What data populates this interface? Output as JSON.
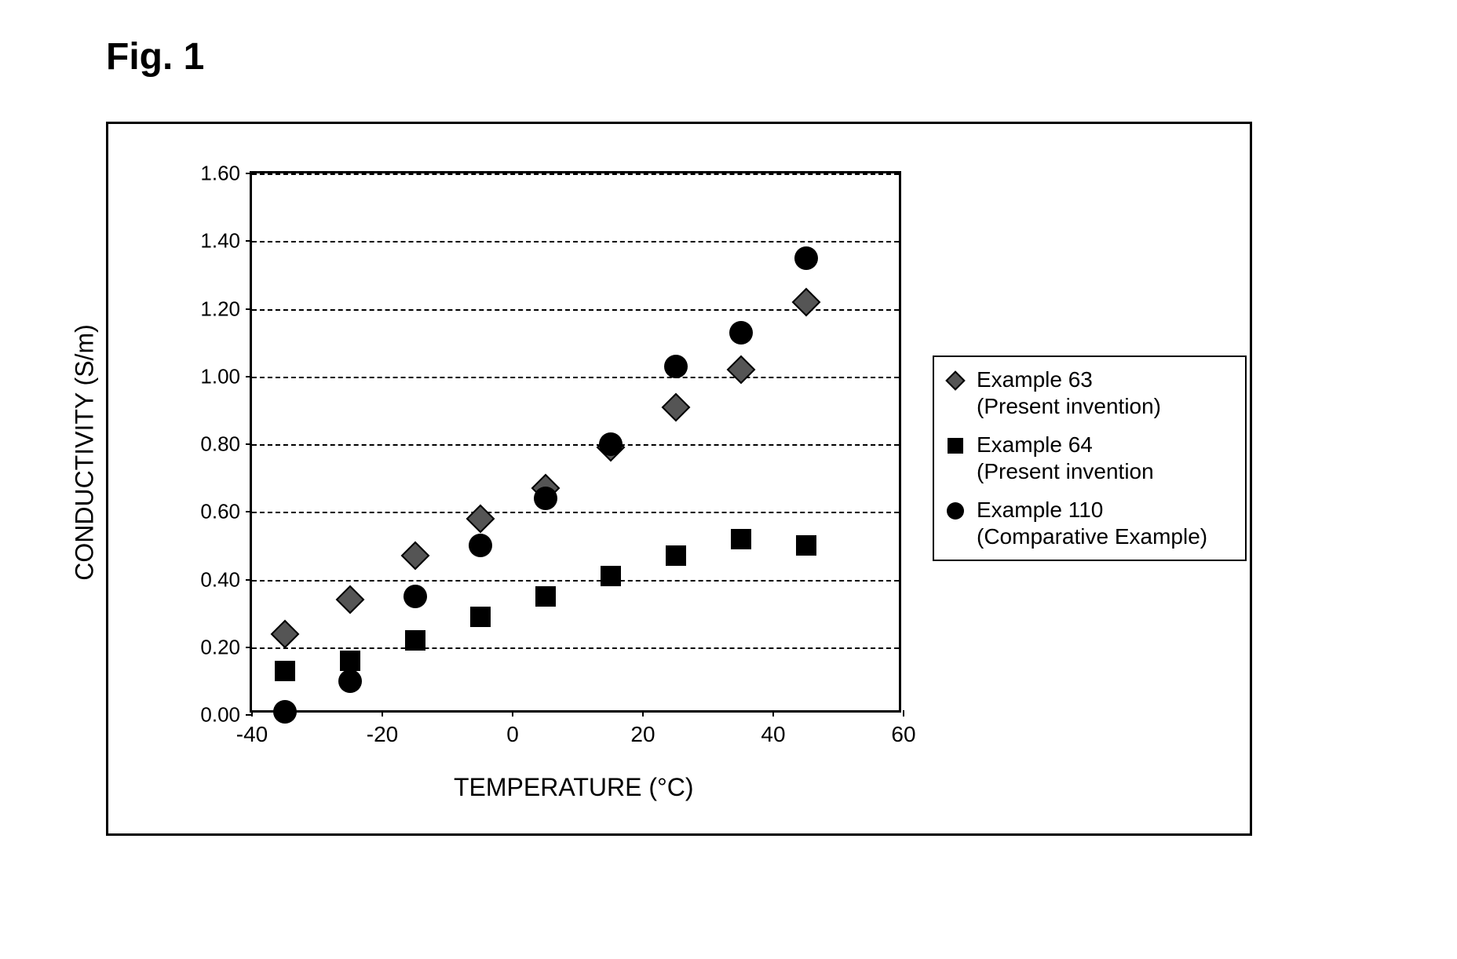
{
  "figure_title": "Fig. 1",
  "chart": {
    "type": "scatter",
    "xlabel": "TEMPERATURE (°C)",
    "ylabel": "CONDUCTIVITY (S/m)",
    "xlim": [
      -40,
      60
    ],
    "ylim": [
      0.0,
      1.6
    ],
    "x_ticks": [
      -40,
      -20,
      0,
      20,
      40,
      60
    ],
    "y_ticks": [
      0.0,
      0.2,
      0.4,
      0.6,
      0.8,
      1.0,
      1.2,
      1.4,
      1.6
    ],
    "y_tick_labels": [
      "0.00",
      "0.20",
      "0.40",
      "0.60",
      "0.80",
      "1.00",
      "1.20",
      "1.40",
      "1.60"
    ],
    "x_tick_labels": [
      "-40",
      "-20",
      "0",
      "20",
      "40",
      "60"
    ],
    "grid_y": [
      0.2,
      0.4,
      0.6,
      0.8,
      1.0,
      1.2,
      1.4,
      1.6
    ],
    "grid_color": "#000000",
    "background_color": "#ffffff",
    "label_fontsize": 32,
    "tick_fontsize": 27,
    "title_fontsize": 48,
    "marker_size": 28,
    "series": [
      {
        "name": "Example 63",
        "label_line1": "Example 63",
        "label_line2": "(Present invention)",
        "marker": "diamond",
        "color": "#555555",
        "border": "#000000",
        "data": [
          {
            "x": -35,
            "y": 0.24
          },
          {
            "x": -25,
            "y": 0.34
          },
          {
            "x": -15,
            "y": 0.47
          },
          {
            "x": -5,
            "y": 0.58
          },
          {
            "x": 5,
            "y": 0.67
          },
          {
            "x": 15,
            "y": 0.79
          },
          {
            "x": 25,
            "y": 0.91
          },
          {
            "x": 35,
            "y": 1.02
          },
          {
            "x": 45,
            "y": 1.22
          }
        ]
      },
      {
        "name": "Example 64",
        "label_line1": "Example 64",
        "label_line2": "(Present invention",
        "marker": "square",
        "color": "#000000",
        "data": [
          {
            "x": -35,
            "y": 0.13
          },
          {
            "x": -25,
            "y": 0.16
          },
          {
            "x": -15,
            "y": 0.22
          },
          {
            "x": -5,
            "y": 0.29
          },
          {
            "x": 5,
            "y": 0.35
          },
          {
            "x": 15,
            "y": 0.41
          },
          {
            "x": 25,
            "y": 0.47
          },
          {
            "x": 35,
            "y": 0.52
          },
          {
            "x": 45,
            "y": 0.5
          }
        ]
      },
      {
        "name": "Example 110",
        "label_line1": "Example 110",
        "label_line2": "(Comparative Example)",
        "marker": "circle",
        "color": "#000000",
        "data": [
          {
            "x": -35,
            "y": 0.01
          },
          {
            "x": -25,
            "y": 0.1
          },
          {
            "x": -15,
            "y": 0.35
          },
          {
            "x": -5,
            "y": 0.5
          },
          {
            "x": 5,
            "y": 0.64
          },
          {
            "x": 15,
            "y": 0.8
          },
          {
            "x": 25,
            "y": 1.03
          },
          {
            "x": 35,
            "y": 1.13
          },
          {
            "x": 45,
            "y": 1.35
          }
        ]
      }
    ]
  },
  "legend": {
    "position": "right",
    "border_color": "#000000"
  }
}
